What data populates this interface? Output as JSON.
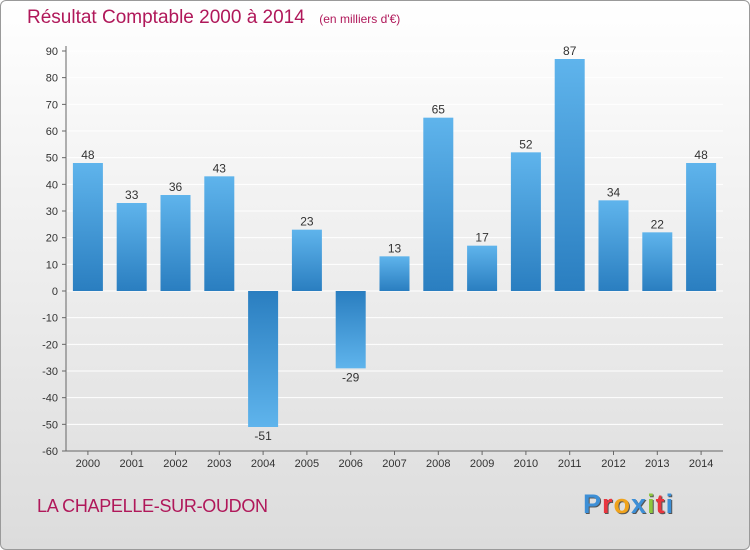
{
  "title": "Résultat Comptable 2000 à 2014",
  "unit_note": "(en milliers d'€)",
  "commune": "LA CHAPELLE-SUR-OUDON",
  "brand": {
    "name": "Proxiti",
    "letter_colors": [
      "#3d8fd6",
      "#e8363f",
      "#f0a31c",
      "#3d8fd6",
      "#8dc63f",
      "#e8363f",
      "#3d8fd6"
    ]
  },
  "colors": {
    "bar_light": "#5fb4ec",
    "bar_dark": "#2a7ec0",
    "grid": "#ffffff",
    "title": "#b0185a"
  },
  "chart_data": {
    "type": "bar",
    "title": "Résultat Comptable 2000 à 2014",
    "xlabel": "",
    "ylabel": "",
    "categories": [
      "2000",
      "2001",
      "2002",
      "2003",
      "2004",
      "2005",
      "2006",
      "2007",
      "2008",
      "2009",
      "2010",
      "2011",
      "2012",
      "2013",
      "2014"
    ],
    "values": [
      48,
      33,
      36,
      43,
      -51,
      23,
      -29,
      13,
      65,
      17,
      52,
      87,
      34,
      22,
      48
    ],
    "ylim": [
      -60,
      90
    ],
    "yticks": [
      90,
      80,
      70,
      60,
      50,
      40,
      30,
      20,
      10,
      0,
      -10,
      -20,
      -30,
      -40,
      -50,
      -60
    ],
    "grid": true
  }
}
